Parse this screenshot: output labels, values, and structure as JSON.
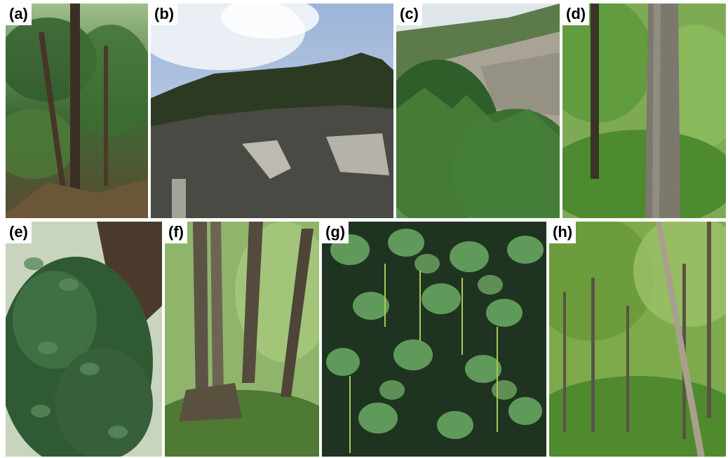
{
  "figure": {
    "panels": [
      {
        "label": "(a)",
        "scene": "conifer trees on rocky ridge"
      },
      {
        "label": "(b)",
        "scene": "limestone cliff under cloudy sky"
      },
      {
        "label": "(c)",
        "scene": "forest below cliff face"
      },
      {
        "label": "(d)",
        "scene": "large tree trunk in green forest"
      },
      {
        "label": "(e)",
        "scene": "vine covered tree trunk"
      },
      {
        "label": "(f)",
        "scene": "multi-stemmed tree in forest"
      },
      {
        "label": "(g)",
        "scene": "heart-shaped leaves with catkins"
      },
      {
        "label": "(h)",
        "scene": "open forest understory"
      }
    ]
  }
}
